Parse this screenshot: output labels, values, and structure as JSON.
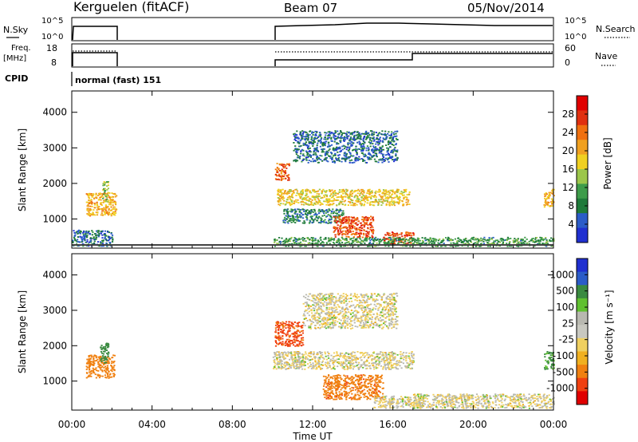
{
  "header": {
    "station": "Kerguelen (fitACF)",
    "beam": "Beam 07",
    "date": "05/Nov/2014"
  },
  "top_panels": {
    "nsky": {
      "label": "N.Sky",
      "right_label": "N.Search",
      "left_ticks": [
        "10^5",
        "10^0"
      ],
      "right_ticks": [
        "10^5",
        "10^0"
      ]
    },
    "freq": {
      "label_line1": "Freq.",
      "label_line2": "[MHz]",
      "right_label": "Nave",
      "left_ticks": [
        "18",
        "8"
      ],
      "right_ticks": [
        "60",
        "0"
      ]
    },
    "cpid": {
      "label": "CPID",
      "mode": "normal (fast) 151"
    }
  },
  "colors": {
    "power": [
      "#2030d0",
      "#2b5cc8",
      "#1f7a3a",
      "#3e9c4a",
      "#9cc64a",
      "#f0d020",
      "#f0a020",
      "#f07010",
      "#e03010",
      "#e00000"
    ],
    "velocity": [
      "#e00000",
      "#f04010",
      "#f08010",
      "#f0b020",
      "#f0d060",
      "#c8c8c0",
      "#b8b8b0",
      "#60c030",
      "#3a8a40",
      "#2b5cc8",
      "#2030d0"
    ]
  },
  "chart_data": [
    {
      "type": "heatmap",
      "panel": "power",
      "ylabel": "Slant Range [km]",
      "colorbar_label": "Power [dB]",
      "colorbar_ticks": [
        "4",
        "8",
        "12",
        "16",
        "20",
        "24",
        "28"
      ],
      "colorbar_range": [
        0,
        32
      ],
      "x_ticks": [
        "00:00",
        "04:00",
        "08:00",
        "12:00",
        "16:00",
        "20:00",
        "00:00"
      ],
      "y_ticks": [
        "1000",
        "2000",
        "3000",
        "4000"
      ],
      "xlim": [
        0,
        24
      ],
      "ylim": [
        180,
        4600
      ],
      "regions": [
        {
          "t0": 0.7,
          "t1": 2.2,
          "r0": 1100,
          "r1": 1750,
          "val": 20
        },
        {
          "t0": 0.0,
          "t1": 2.0,
          "r0": 250,
          "r1": 700,
          "val": 6
        },
        {
          "t0": 1.5,
          "t1": 1.8,
          "r0": 1500,
          "r1": 2100,
          "val": 14
        },
        {
          "t0": 10.1,
          "t1": 10.8,
          "r0": 2100,
          "r1": 2600,
          "val": 24
        },
        {
          "t0": 10.2,
          "t1": 16.8,
          "r0": 1400,
          "r1": 1850,
          "val": 18
        },
        {
          "t0": 10.5,
          "t1": 13.5,
          "r0": 900,
          "r1": 1300,
          "val": 8
        },
        {
          "t0": 13.0,
          "t1": 15.0,
          "r0": 500,
          "r1": 1100,
          "val": 26
        },
        {
          "t0": 11.0,
          "t1": 16.2,
          "r0": 2600,
          "r1": 3500,
          "val": 6
        },
        {
          "t0": 15.5,
          "t1": 17.0,
          "r0": 300,
          "r1": 650,
          "val": 26
        },
        {
          "t0": 10.0,
          "t1": 24.0,
          "r0": 250,
          "r1": 500,
          "val": 10
        },
        {
          "t0": 23.5,
          "t1": 24.0,
          "r0": 1350,
          "r1": 1850,
          "val": 20
        }
      ]
    },
    {
      "type": "heatmap",
      "panel": "velocity",
      "ylabel": "Slant Range [km]",
      "colorbar_label": "Velocity [m s⁻¹]",
      "colorbar_ticks": [
        "1000",
        "500",
        "100",
        "25",
        "-25",
        "-100",
        "-500",
        "-1000"
      ],
      "x_ticks": [
        "00:00",
        "04:00",
        "08:00",
        "12:00",
        "16:00",
        "20:00",
        "00:00"
      ],
      "y_ticks": [
        "1000",
        "2000",
        "3000",
        "4000"
      ],
      "xlabel": "Time UT",
      "xlim": [
        0,
        24
      ],
      "ylim": [
        180,
        4600
      ],
      "regions": [
        {
          "t0": 0.7,
          "t1": 2.1,
          "r0": 1100,
          "r1": 1750,
          "val": -300
        },
        {
          "t0": 1.4,
          "t1": 1.8,
          "r0": 1500,
          "r1": 2100,
          "val": 150
        },
        {
          "t0": 10.1,
          "t1": 11.5,
          "r0": 2000,
          "r1": 2700,
          "val": -600
        },
        {
          "t0": 10.0,
          "t1": 17.0,
          "r0": 1350,
          "r1": 1850,
          "val": 0
        },
        {
          "t0": 12.5,
          "t1": 15.5,
          "r0": 500,
          "r1": 1200,
          "val": -400
        },
        {
          "t0": 11.5,
          "t1": 16.2,
          "r0": 2500,
          "r1": 3500,
          "val": 0
        },
        {
          "t0": 15.0,
          "t1": 17.5,
          "r0": 250,
          "r1": 600,
          "val": 0
        },
        {
          "t0": 17.0,
          "t1": 24.0,
          "r0": 250,
          "r1": 650,
          "val": 0
        },
        {
          "t0": 23.5,
          "t1": 24.0,
          "r0": 1350,
          "r1": 1850,
          "val": 120
        }
      ]
    }
  ]
}
